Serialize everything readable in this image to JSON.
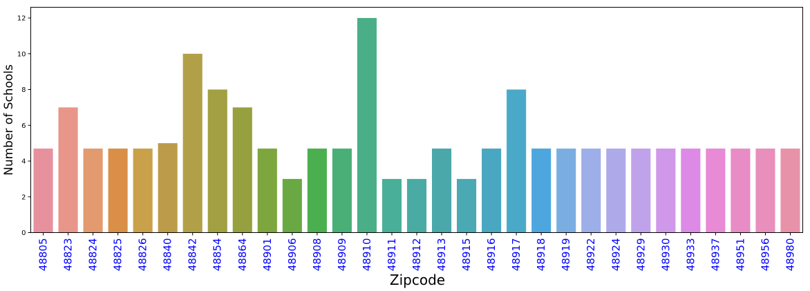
{
  "chart_data": {
    "type": "bar",
    "xlabel": "Zipcode",
    "ylabel": "Number of Schools",
    "ylim": [
      0,
      12.6
    ],
    "yticks": [
      "0",
      "2",
      "4",
      "6",
      "8",
      "10",
      "12"
    ],
    "grid": false,
    "tick_label_color": "#0000ff",
    "categories": [
      "48805",
      "48823",
      "48824",
      "48825",
      "48826",
      "48840",
      "48842",
      "48854",
      "48864",
      "48901",
      "48906",
      "48908",
      "48909",
      "48910",
      "48911",
      "48912",
      "48913",
      "48915",
      "48916",
      "48917",
      "48918",
      "48919",
      "48922",
      "48924",
      "48929",
      "48930",
      "48933",
      "48937",
      "48951",
      "48956",
      "48980"
    ],
    "values": [
      4.7,
      7,
      4.7,
      4.7,
      4.7,
      5,
      10,
      8,
      7,
      4.7,
      3,
      4.7,
      4.7,
      12,
      3,
      3,
      4.7,
      3,
      4.7,
      8,
      4.7,
      4.7,
      4.7,
      4.7,
      4.7,
      4.7,
      4.7,
      4.7,
      4.7,
      4.7,
      4.7
    ],
    "colors": [
      "#e8919e",
      "#e8958a",
      "#e39a6e",
      "#d98f48",
      "#c9a14a",
      "#bc9c4a",
      "#b1a048",
      "#a2a043",
      "#97a03f",
      "#7ea63e",
      "#6aa844",
      "#4caf4f",
      "#4aaf77",
      "#4aaf88",
      "#4aaf98",
      "#4aaba4",
      "#4aa8ab",
      "#4aa9b3",
      "#4aa7c1",
      "#4aa9c9",
      "#4ea6df",
      "#7aaee0",
      "#9daee8",
      "#aeaaea",
      "#c0a2ea",
      "#cf98e8",
      "#dd8ae6",
      "#e88ad6",
      "#e88cc6",
      "#e88fbb",
      "#e892aa"
    ]
  }
}
